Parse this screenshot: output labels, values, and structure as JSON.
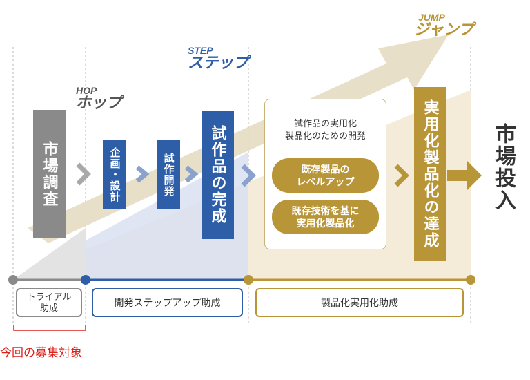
{
  "phases": {
    "hop": {
      "en": "HOP",
      "jp": "ホップ"
    },
    "step": {
      "en": "STEP",
      "jp": "ステップ"
    },
    "jump": {
      "en": "JUMP",
      "jp": "ジャンプ"
    }
  },
  "boxes": {
    "market_research": "市場調査",
    "planning_design": "企画・設計",
    "prototype_dev": "試作開発",
    "prototype_complete": "試作品の完成",
    "commercialization_complete": "実用化製品化の達成",
    "market_launch": "市場投入"
  },
  "dev_panel": {
    "title": "試作品の実用化\n製品化のための開発",
    "pill_1": "既存製品の\nレベルアップ",
    "pill_2": "既存技術を基に\n実用化製品化"
  },
  "grants": {
    "trial": "トライアル\n助成",
    "dev_step_up": "開発ステップアップ助成",
    "commercialization": "製品化実用化助成"
  },
  "note": "今回の募集対象",
  "colors": {
    "gray": "#8a8a8a",
    "blue": "#2e5ea8",
    "gold": "#b89536",
    "red": "#e0201a",
    "light_gold": "#f4ecd9",
    "light_blue": "#d7e0f0"
  }
}
